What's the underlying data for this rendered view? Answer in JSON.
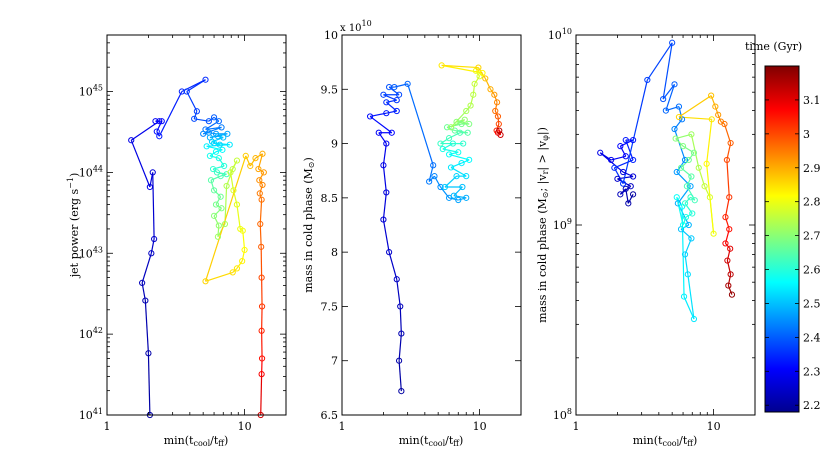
{
  "chart_data": [
    {
      "type": "line",
      "panel": "left",
      "xscale": "log",
      "yscale": "log",
      "xlim": [
        1,
        20
      ],
      "ylim": [
        1e+41,
        5e+45
      ],
      "xticks": [
        {
          "v": 1,
          "label": "1"
        },
        {
          "v": 10,
          "label": "10"
        }
      ],
      "yticks": [
        {
          "v": 1e+41,
          "base": "10",
          "exp": "41"
        },
        {
          "v": 1e+42,
          "base": "10",
          "exp": "42"
        },
        {
          "v": 1e+43,
          "base": "10",
          "exp": "43"
        },
        {
          "v": 1e+44,
          "base": "10",
          "exp": "44"
        },
        {
          "v": 1e+45,
          "base": "10",
          "exp": "45"
        }
      ],
      "xlabel": "min(t_cool/t_ff)",
      "ylabel": "jet power (erg s^-1)",
      "points": [
        [
          2.05,
          1e+41,
          2.2
        ],
        [
          2.0,
          5.8e+41,
          2.21
        ],
        [
          1.9,
          2.6e+42,
          2.22
        ],
        [
          1.8,
          4.3e+42,
          2.23
        ],
        [
          2.1,
          1e+43,
          2.24
        ],
        [
          2.2,
          1.5e+43,
          2.25
        ],
        [
          2.15,
          1e+44,
          2.26
        ],
        [
          2.05,
          6.6e+43,
          2.27
        ],
        [
          1.5,
          2.5e+44,
          2.28
        ],
        [
          2.4,
          4.3e+44,
          2.29
        ],
        [
          2.25,
          4.3e+44,
          2.3
        ],
        [
          2.5,
          4.3e+44,
          2.31
        ],
        [
          2.3,
          3.2e+44,
          2.32
        ],
        [
          2.4,
          2.8e+44,
          2.33
        ],
        [
          3.5,
          1e+45,
          2.34
        ],
        [
          5.2,
          1.4e+45,
          2.35
        ],
        [
          3.8,
          1e+45,
          2.36
        ],
        [
          4.5,
          5.7e+44,
          2.37
        ],
        [
          4.3,
          4.6e+44,
          2.38
        ],
        [
          5.5,
          4.3e+44,
          2.39
        ],
        [
          6.0,
          4.8e+44,
          2.4
        ],
        [
          6.5,
          4.3e+44,
          2.41
        ],
        [
          5.2,
          3.4e+44,
          2.42
        ],
        [
          6.8,
          3.6e+44,
          2.43
        ],
        [
          5.0,
          3e+44,
          2.44
        ],
        [
          5.5,
          3.1e+44,
          2.45
        ],
        [
          6.2,
          3e+44,
          2.46
        ],
        [
          7.5,
          3e+44,
          2.47
        ],
        [
          5.6,
          2.7e+44,
          2.48
        ],
        [
          6.4,
          2.8e+44,
          2.49
        ],
        [
          7.0,
          2.7e+44,
          2.5
        ],
        [
          5.8,
          2.4e+44,
          2.51
        ],
        [
          6.6,
          2.2e+44,
          2.52
        ],
        [
          6.0,
          2.3e+44,
          2.53
        ],
        [
          7.8,
          2.2e+44,
          2.54
        ],
        [
          5.3,
          2.1e+44,
          2.55
        ],
        [
          6.9,
          1.9e+44,
          2.56
        ],
        [
          6.2,
          1.8e+44,
          2.57
        ],
        [
          5.6,
          1.6e+44,
          2.58
        ],
        [
          6.5,
          1.5e+44,
          2.59
        ],
        [
          7.1,
          1.2e+44,
          2.6
        ],
        [
          5.9,
          1.1e+44,
          2.61
        ],
        [
          6.3,
          1e+44,
          2.62
        ],
        [
          7.4,
          9.5e+43,
          2.63
        ],
        [
          6.7,
          9e+43,
          2.64
        ],
        [
          5.7,
          8e+43,
          2.65
        ],
        [
          6.0,
          6e+43,
          2.66
        ],
        [
          6.7,
          5e+43,
          2.67
        ],
        [
          6.2,
          4e+43,
          2.68
        ],
        [
          6.8,
          3.6e+43,
          2.69
        ],
        [
          6.0,
          2.9e+43,
          2.7
        ],
        [
          6.5,
          2.2e+43,
          2.71
        ],
        [
          6.4,
          1.6e+43,
          2.72
        ],
        [
          7.2,
          2.3e+43,
          2.73
        ],
        [
          7.4,
          6.8e+43,
          2.74
        ],
        [
          8.2,
          1.1e+44,
          2.75
        ],
        [
          8.8,
          1.4e+44,
          2.76
        ],
        [
          7.9,
          1e+44,
          2.77
        ],
        [
          8.3,
          6e+43,
          2.78
        ],
        [
          8.8,
          4e+43,
          2.79
        ],
        [
          9.3,
          2e+43,
          2.8
        ],
        [
          9.7,
          1.9e+43,
          2.81
        ],
        [
          10.0,
          1.1e+43,
          2.82
        ],
        [
          9.6,
          8e+42,
          2.83
        ],
        [
          8.8,
          6.5e+42,
          2.84
        ],
        [
          8.2,
          5.8e+42,
          2.85
        ],
        [
          5.2,
          4.5e+42,
          2.86
        ],
        [
          10.2,
          1.6e+44,
          2.87
        ],
        [
          11.0,
          1.2e+44,
          2.88
        ],
        [
          12.0,
          1.5e+44,
          2.89
        ],
        [
          13.5,
          1.7e+44,
          2.9
        ],
        [
          12.6,
          1.1e+44,
          2.91
        ],
        [
          13.8,
          1e+44,
          2.92
        ],
        [
          12.8,
          8e+43,
          2.93
        ],
        [
          13.5,
          7e+43,
          2.94
        ],
        [
          12.9,
          5.5e+43,
          2.95
        ],
        [
          13.3,
          4.6e+43,
          2.96
        ],
        [
          13.0,
          2.3e+43,
          2.97
        ],
        [
          13.2,
          1.2e+43,
          2.98
        ],
        [
          13.3,
          5e+42,
          3.0
        ],
        [
          13.4,
          2.2e+42,
          3.02
        ],
        [
          13.3,
          1.1e+42,
          3.04
        ],
        [
          13.4,
          5e+41,
          3.06
        ],
        [
          13.3,
          3.2e+41,
          3.08
        ],
        [
          13.1,
          1e+41,
          3.12
        ]
      ]
    },
    {
      "type": "line",
      "panel": "middle",
      "xscale": "log",
      "yscale": "linear",
      "xlim": [
        1,
        20
      ],
      "ylim": [
        6.5,
        10
      ],
      "multiplier": "x 10^10",
      "xticks": [
        {
          "v": 1,
          "label": "1"
        },
        {
          "v": 10,
          "label": "10"
        }
      ],
      "yticks": [
        {
          "v": 6.5,
          "label": "6.5"
        },
        {
          "v": 7,
          "label": "7"
        },
        {
          "v": 7.5,
          "label": "7.5"
        },
        {
          "v": 8,
          "label": "8"
        },
        {
          "v": 8.5,
          "label": "8.5"
        },
        {
          "v": 9,
          "label": "9"
        },
        {
          "v": 9.5,
          "label": "9.5"
        },
        {
          "v": 10,
          "label": "10"
        }
      ],
      "xlabel": "min(t_cool/t_ff)",
      "ylabel": "mass in cold phase (M_sun)",
      "points": [
        [
          2.7,
          6.72,
          2.2
        ],
        [
          2.6,
          7.0,
          2.21
        ],
        [
          2.7,
          7.25,
          2.22
        ],
        [
          2.65,
          7.5,
          2.23
        ],
        [
          2.5,
          7.75,
          2.24
        ],
        [
          2.2,
          8.0,
          2.25
        ],
        [
          2.0,
          8.3,
          2.26
        ],
        [
          2.1,
          8.55,
          2.27
        ],
        [
          2.0,
          8.8,
          2.28
        ],
        [
          2.1,
          9.0,
          2.29
        ],
        [
          1.85,
          9.1,
          2.3
        ],
        [
          2.3,
          9.1,
          2.31
        ],
        [
          1.6,
          9.25,
          2.32
        ],
        [
          2.1,
          9.28,
          2.33
        ],
        [
          2.5,
          9.3,
          2.34
        ],
        [
          2.1,
          9.38,
          2.35
        ],
        [
          2.5,
          9.4,
          2.36
        ],
        [
          2.0,
          9.45,
          2.37
        ],
        [
          2.6,
          9.45,
          2.38
        ],
        [
          2.2,
          9.52,
          2.39
        ],
        [
          2.4,
          9.52,
          2.4
        ],
        [
          3.0,
          9.55,
          2.41
        ],
        [
          4.6,
          8.8,
          2.42
        ],
        [
          4.3,
          8.65,
          2.43
        ],
        [
          4.7,
          8.7,
          2.44
        ],
        [
          5.2,
          8.6,
          2.45
        ],
        [
          6.0,
          8.5,
          2.46
        ],
        [
          7.0,
          8.48,
          2.47
        ],
        [
          8.0,
          8.5,
          2.48
        ],
        [
          6.5,
          8.52,
          2.49
        ],
        [
          7.5,
          8.6,
          2.5
        ],
        [
          5.6,
          8.6,
          2.51
        ],
        [
          6.8,
          8.7,
          2.52
        ],
        [
          8.0,
          8.7,
          2.53
        ],
        [
          6.2,
          8.78,
          2.54
        ],
        [
          7.4,
          8.82,
          2.55
        ],
        [
          8.4,
          8.85,
          2.56
        ],
        [
          6.0,
          8.9,
          2.57
        ],
        [
          7.0,
          8.92,
          2.58
        ],
        [
          5.4,
          8.95,
          2.59
        ],
        [
          6.4,
          9.0,
          2.6
        ],
        [
          7.6,
          9.0,
          2.61
        ],
        [
          5.2,
          9.0,
          2.62
        ],
        [
          6.0,
          9.05,
          2.63
        ],
        [
          7.2,
          9.1,
          2.64
        ],
        [
          8.2,
          9.1,
          2.65
        ],
        [
          6.6,
          9.12,
          2.66
        ],
        [
          5.8,
          9.15,
          2.67
        ],
        [
          7.4,
          9.18,
          2.68
        ],
        [
          8.4,
          9.18,
          2.69
        ],
        [
          6.8,
          9.2,
          2.7
        ],
        [
          7.8,
          9.22,
          2.71
        ],
        [
          6.2,
          9.15,
          2.72
        ],
        [
          8.0,
          9.3,
          2.73
        ],
        [
          8.6,
          9.35,
          2.74
        ],
        [
          9.0,
          9.45,
          2.75
        ],
        [
          9.2,
          9.55,
          2.76
        ],
        [
          10.0,
          9.62,
          2.78
        ],
        [
          9.4,
          9.67,
          2.8
        ],
        [
          10.5,
          9.65,
          2.82
        ],
        [
          5.3,
          9.72,
          2.84
        ],
        [
          9.8,
          9.7,
          2.86
        ],
        [
          11.0,
          9.6,
          2.88
        ],
        [
          12.0,
          9.5,
          2.9
        ],
        [
          12.8,
          9.45,
          2.92
        ],
        [
          13.4,
          9.38,
          2.94
        ],
        [
          13.0,
          9.3,
          2.96
        ],
        [
          13.6,
          9.25,
          2.98
        ],
        [
          13.8,
          9.18,
          3.0
        ],
        [
          13.3,
          9.12,
          3.04
        ],
        [
          13.6,
          9.1,
          3.08
        ],
        [
          14.2,
          9.08,
          3.12
        ],
        [
          13.9,
          9.12,
          3.15
        ]
      ]
    },
    {
      "type": "line",
      "panel": "right",
      "xscale": "log",
      "yscale": "log",
      "xlim": [
        1,
        20
      ],
      "ylim": [
        100000000.0,
        10000000000.0
      ],
      "xticks": [
        {
          "v": 1,
          "label": "1"
        },
        {
          "v": 10,
          "label": "10"
        }
      ],
      "yticks": [
        {
          "v": 100000000.0,
          "base": "10",
          "exp": "8"
        },
        {
          "v": 1000000000.0,
          "base": "10",
          "exp": "9"
        },
        {
          "v": 10000000000.0,
          "base": "10",
          "exp": "10"
        }
      ],
      "xlabel": "min(t_cool/t_ff)",
      "ylabel": "mass in cold phase (M_sun; |v_r| > |v_phi|)",
      "points": [
        [
          2.6,
          1450000000.0,
          2.2
        ],
        [
          2.4,
          1300000000.0,
          2.21
        ],
        [
          2.3,
          1550000000.0,
          2.22
        ],
        [
          2.1,
          1450000000.0,
          2.23
        ],
        [
          2.5,
          1600000000.0,
          2.24
        ],
        [
          2.0,
          1750000000.0,
          2.25
        ],
        [
          2.6,
          1800000000.0,
          2.26
        ],
        [
          2.2,
          1900000000.0,
          2.27
        ],
        [
          1.5,
          2400000000.0,
          2.28
        ],
        [
          1.8,
          2200000000.0,
          2.29
        ],
        [
          2.3,
          2300000000.0,
          2.3
        ],
        [
          2.1,
          2600000000.0,
          2.31
        ],
        [
          2.6,
          2800000000.0,
          2.32
        ],
        [
          2.3,
          2800000000.0,
          2.33
        ],
        [
          2.6,
          2200000000.0,
          2.34
        ],
        [
          1.9,
          2000000000.0,
          2.35
        ],
        [
          2.2,
          1650000000.0,
          2.36
        ],
        [
          3.3,
          5800000000.0,
          2.37
        ],
        [
          5.0,
          9100000000.0,
          2.38
        ],
        [
          4.3,
          4600000000.0,
          2.39
        ],
        [
          5.2,
          5500000000.0,
          2.4
        ],
        [
          4.5,
          4000000000.0,
          2.41
        ],
        [
          5.6,
          4200000000.0,
          2.42
        ],
        [
          5.9,
          3600000000.0,
          2.43
        ],
        [
          5.2,
          3200000000.0,
          2.44
        ],
        [
          6.2,
          2200000000.0,
          2.45
        ],
        [
          5.4,
          1900000000.0,
          2.46
        ],
        [
          6.8,
          1600000000.0,
          2.47
        ],
        [
          5.5,
          1300000000.0,
          2.48
        ],
        [
          6.6,
          1000000000.0,
          2.49
        ],
        [
          5.8,
          950000000.0,
          2.5
        ],
        [
          6.9,
          850000000.0,
          2.51
        ],
        [
          6.2,
          700000000.0,
          2.52
        ],
        [
          6.5,
          550000000.0,
          2.53
        ],
        [
          7.2,
          320000000.0,
          2.54
        ],
        [
          6.1,
          420000000.0,
          2.55
        ],
        [
          5.9,
          1250000000.0,
          2.56
        ],
        [
          5.4,
          1400000000.0,
          2.57
        ],
        [
          6.0,
          1000000000.0,
          2.58
        ],
        [
          6.3,
          1100000000.0,
          2.59
        ],
        [
          7.0,
          1150000000.0,
          2.6
        ],
        [
          6.2,
          1300000000.0,
          2.61
        ],
        [
          6.8,
          1400000000.0,
          2.62
        ],
        [
          7.3,
          1350000000.0,
          2.63
        ],
        [
          6.4,
          1600000000.0,
          2.64
        ],
        [
          6.9,
          1800000000.0,
          2.65
        ],
        [
          5.8,
          2000000000.0,
          2.66
        ],
        [
          6.6,
          2200000000.0,
          2.67
        ],
        [
          7.2,
          2400000000.0,
          2.68
        ],
        [
          6.0,
          2600000000.0,
          2.69
        ],
        [
          5.3,
          2850000000.0,
          2.7
        ],
        [
          6.9,
          3000000000.0,
          2.72
        ],
        [
          7.8,
          2000000000.0,
          2.74
        ],
        [
          8.6,
          1600000000.0,
          2.76
        ],
        [
          9.4,
          1400000000.0,
          2.78
        ],
        [
          10.0,
          900000000.0,
          2.8
        ],
        [
          8.9,
          2100000000.0,
          2.82
        ],
        [
          9.7,
          3600000000.0,
          2.84
        ],
        [
          5.6,
          3700000000.0,
          2.86
        ],
        [
          9.6,
          4800000000.0,
          2.88
        ],
        [
          10.3,
          4200000000.0,
          2.9
        ],
        [
          10.8,
          3800000000.0,
          2.92
        ],
        [
          11.3,
          3500000000.0,
          2.94
        ],
        [
          12.0,
          3400000000.0,
          2.96
        ],
        [
          13.3,
          2700000000.0,
          2.98
        ],
        [
          12.5,
          2200000000.0,
          3.0
        ],
        [
          13.0,
          1400000000.0,
          3.02
        ],
        [
          12.2,
          1100000000.0,
          3.04
        ],
        [
          13.0,
          950000000.0,
          3.06
        ],
        [
          12.2,
          800000000.0,
          3.08
        ],
        [
          13.2,
          750000000.0,
          3.1
        ],
        [
          12.6,
          650000000.0,
          3.12
        ],
        [
          13.3,
          550000000.0,
          3.14
        ],
        [
          12.8,
          480000000.0,
          3.16
        ],
        [
          13.6,
          430000000.0,
          3.18
        ]
      ]
    }
  ],
  "colorbar": {
    "title": "time (Gyr)",
    "min": 2.18,
    "max": 3.2,
    "ticks": [
      {
        "v": 2.2,
        "label": "2.2"
      },
      {
        "v": 2.3,
        "label": "2.3"
      },
      {
        "v": 2.4,
        "label": "2.4"
      },
      {
        "v": 2.5,
        "label": "2.5"
      },
      {
        "v": 2.6,
        "label": "2.6"
      },
      {
        "v": 2.7,
        "label": "2.7"
      },
      {
        "v": 2.8,
        "label": "2.8"
      },
      {
        "v": 2.9,
        "label": "2.9"
      },
      {
        "v": 3,
        "label": "3"
      },
      {
        "v": 3.1,
        "label": "3.1"
      }
    ]
  }
}
